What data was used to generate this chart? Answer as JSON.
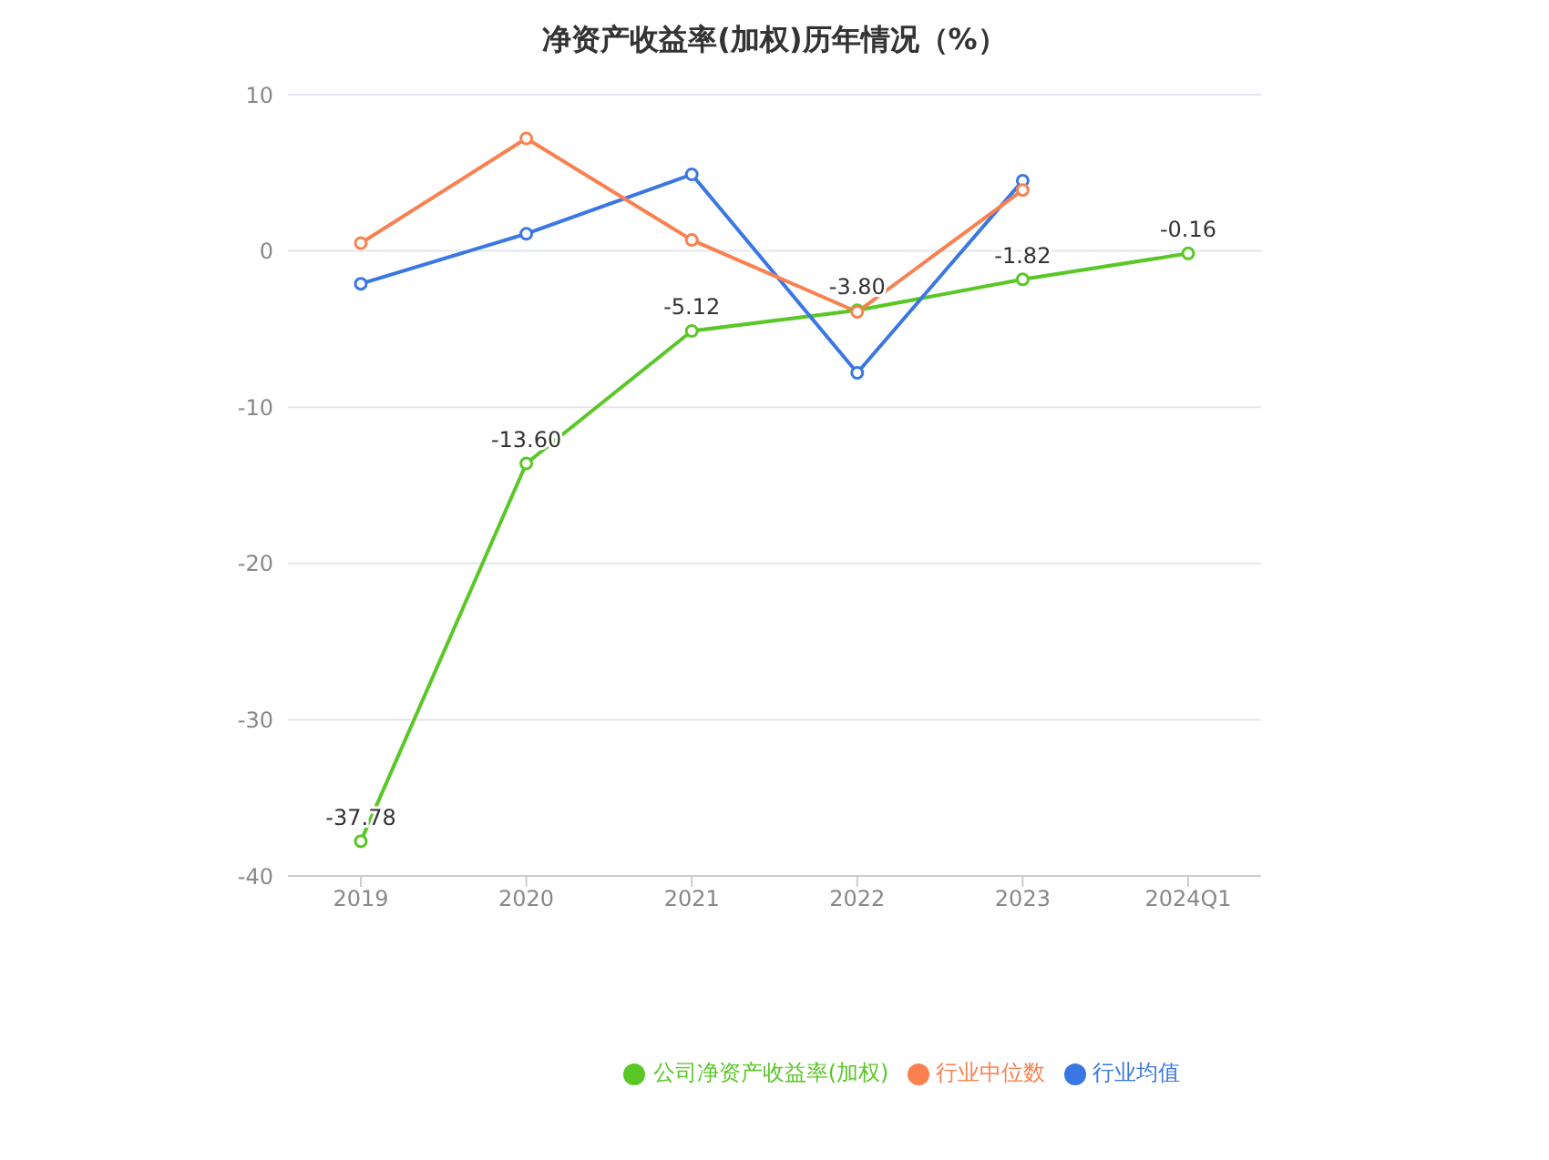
{
  "chart_data": {
    "type": "line",
    "title": "净资产收益率(加权)历年情况（%）",
    "categories": [
      "2019",
      "2020",
      "2021",
      "2022",
      "2023",
      "2024Q1"
    ],
    "series": [
      {
        "name": "公司净资产收益率(加权)",
        "color": "#5ac727",
        "values": [
          -37.78,
          -13.6,
          -5.12,
          -3.8,
          -1.82,
          -0.16
        ],
        "value_labels": [
          "-37.78",
          "-13.60",
          "-5.12",
          "-3.80",
          "-1.82",
          "-0.16"
        ]
      },
      {
        "name": "行业均值",
        "color": "#3b77e3",
        "values": [
          -2.1,
          1.1,
          4.9,
          -7.8,
          4.5,
          null
        ]
      },
      {
        "name": "行业中位数",
        "color": "#fa8050",
        "values": [
          0.5,
          7.2,
          0.7,
          -3.9,
          3.9,
          null
        ]
      }
    ],
    "ylim": [
      -40,
      10
    ],
    "yticks": [
      -40,
      -30,
      -20,
      -10,
      0,
      10
    ],
    "grid": "y",
    "legend": "bottom",
    "marker": "circle",
    "line_style": "solid"
  }
}
